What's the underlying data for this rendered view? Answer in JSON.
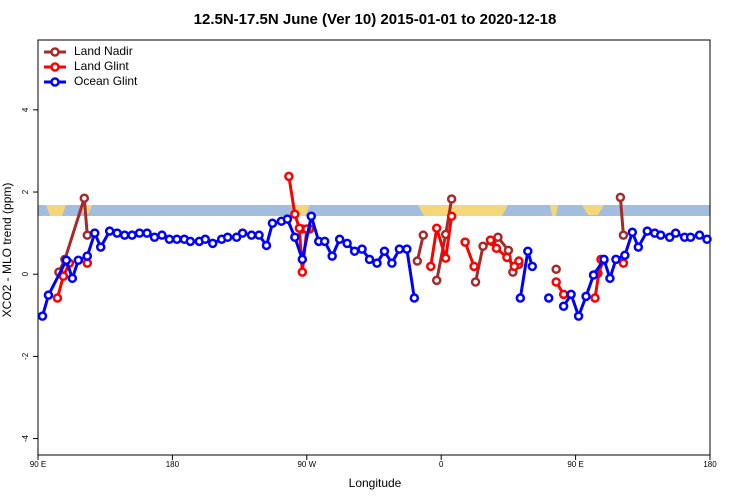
{
  "chart_data": {
    "type": "line",
    "title": "12.5N-17.5N June (Ver 10)   2015-01-01 to 2020-12-18",
    "x_label": "Longitude",
    "y_label": "XCO2 - MLO trend (ppm)",
    "xlim": [
      90,
      540
    ],
    "ylim": [
      -4.4,
      5.7
    ],
    "xticks": [
      {
        "value": 90,
        "label": "90 E"
      },
      {
        "value": 180,
        "label": "180"
      },
      {
        "value": 270,
        "label": "90 W"
      },
      {
        "value": 360,
        "label": "0"
      },
      {
        "value": 450,
        "label": "90 E"
      },
      {
        "value": 540,
        "label": "180"
      }
    ],
    "yticks": [
      -4,
      -2,
      0,
      2,
      4
    ],
    "legend_position": "top-left",
    "series": [
      {
        "name": "Land Nadir",
        "color": "#a52a2a",
        "x": [
          104,
          108,
          121,
          123,
          null,
          267,
          272,
          null,
          344,
          348,
          null,
          357,
          363,
          367,
          null,
          383,
          388,
          394,
          398,
          405,
          408,
          412,
          null,
          437,
          null,
          465,
          469,
          null,
          480,
          482
        ],
        "values": [
          0.05,
          0.36,
          1.85,
          0.95,
          null,
          1.1,
          1.1,
          null,
          0.32,
          0.95,
          null,
          -0.15,
          0.97,
          1.83,
          null,
          -0.19,
          0.68,
          0.8,
          0.9,
          0.58,
          0.05,
          0.24,
          null,
          0.12,
          null,
          0.02,
          0.34,
          null,
          1.87,
          0.95
        ]
      },
      {
        "name": "Land Glint",
        "color": "#ff0000",
        "x": [
          103,
          107,
          111,
          null,
          123,
          null,
          258,
          262,
          265,
          267,
          270,
          null,
          353,
          357,
          363,
          367,
          null,
          376,
          382,
          null,
          393,
          397,
          404,
          409,
          412,
          null,
          437,
          442,
          null,
          463,
          467,
          null,
          482
        ],
        "values": [
          -0.58,
          -0.05,
          0.27,
          null,
          0.27,
          null,
          2.38,
          1.46,
          1.12,
          0.05,
          1.1,
          null,
          0.19,
          1.12,
          0.39,
          1.41,
          null,
          0.78,
          0.19,
          null,
          0.83,
          0.63,
          0.41,
          0.19,
          0.32,
          null,
          -0.19,
          -0.49,
          null,
          -0.58,
          0.36,
          null,
          0.27
        ]
      },
      {
        "name": "Ocean Glint",
        "color": "#0000ff",
        "x": [
          93,
          97,
          109,
          113,
          117,
          123,
          128,
          132,
          138,
          143,
          148,
          153,
          158,
          163,
          168,
          173,
          178,
          183,
          188,
          192,
          198,
          202,
          207,
          213,
          217,
          223,
          227,
          233,
          238,
          243,
          247,
          253,
          257,
          262,
          267,
          273,
          278,
          282,
          287,
          292,
          297,
          302,
          307,
          312,
          317,
          322,
          327,
          332,
          337,
          342,
          null,
          413,
          418,
          421,
          null,
          432,
          null,
          442,
          447,
          452,
          457,
          462,
          469,
          473,
          477,
          483,
          488,
          492,
          498,
          503,
          507,
          513,
          517,
          523,
          527,
          533,
          538
        ],
        "values": [
          -1.02,
          -0.51,
          0.34,
          -0.1,
          0.34,
          0.44,
          1.0,
          0.66,
          1.05,
          1.0,
          0.95,
          0.95,
          1.0,
          1.0,
          0.9,
          0.95,
          0.85,
          0.85,
          0.85,
          0.8,
          0.8,
          0.85,
          0.75,
          0.85,
          0.9,
          0.9,
          1.0,
          0.95,
          0.95,
          0.7,
          1.24,
          1.29,
          1.34,
          0.9,
          0.36,
          1.41,
          0.8,
          0.8,
          0.44,
          0.85,
          0.75,
          0.56,
          0.61,
          0.36,
          0.27,
          0.56,
          0.27,
          0.61,
          0.61,
          -0.58,
          null,
          -0.58,
          0.56,
          0.19,
          null,
          -0.58,
          null,
          -0.78,
          -0.49,
          -1.02,
          -0.54,
          -0.02,
          0.36,
          -0.1,
          0.36,
          0.46,
          1.02,
          0.66,
          1.05,
          1.0,
          0.95,
          0.9,
          1.0,
          0.9,
          0.9,
          0.95,
          0.85
        ]
      }
    ]
  }
}
